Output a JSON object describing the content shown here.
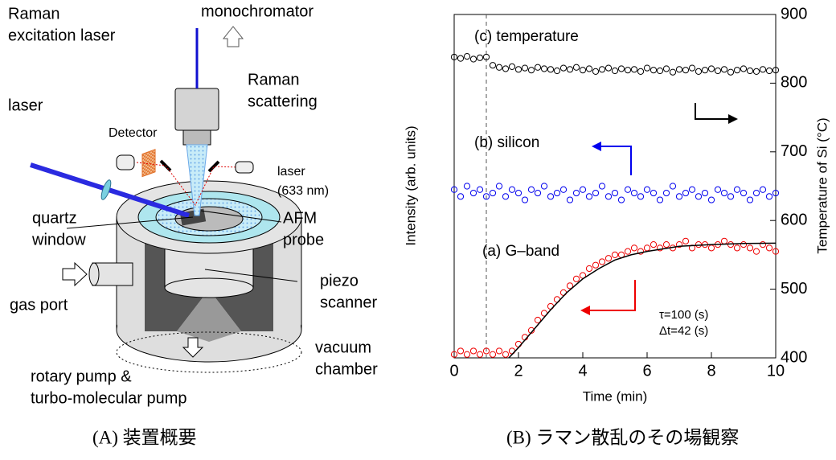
{
  "diagram": {
    "labels": {
      "raman_laser": [
        "Raman",
        "excitation laser"
      ],
      "monochromator": "monochromator",
      "raman_scattering": [
        "Raman",
        "scattering"
      ],
      "laser": "laser",
      "detector": "Detector",
      "probe_laser": [
        "laser",
        "(633 nm)"
      ],
      "quartz_window": [
        "quartz",
        "window"
      ],
      "afm_probe": [
        "AFM",
        "probe"
      ],
      "gas_port": "gas port",
      "piezo_scanner": [
        "piezo",
        "scanner"
      ],
      "vacuum_chamber": [
        "vacuum",
        "chamber"
      ],
      "pumps": [
        "rotary pump &",
        "turbo-molecular pump"
      ]
    },
    "caption": "(A) 装置概要"
  },
  "chart_data": {
    "type": "scatter",
    "caption": "(B) ラマン散乱のその場観察",
    "x_label": "Time (min)",
    "y_label": "Intensity (arb. units)",
    "y2_label": "Temperature of Si (°C)",
    "xlim": [
      0,
      10
    ],
    "xticks": [
      0,
      2,
      4,
      6,
      8,
      10
    ],
    "ylim": [
      0,
      100
    ],
    "y2lim": [
      400,
      900
    ],
    "y2ticks": [
      400,
      500,
      600,
      700,
      800,
      900
    ],
    "vline": 1,
    "annotations": [
      "τ=100 (s)",
      "Δt=42 (s)"
    ],
    "x": [
      0,
      0.2,
      0.4,
      0.6,
      0.8,
      1,
      1.2,
      1.4,
      1.6,
      1.8,
      2,
      2.2,
      2.4,
      2.6,
      2.8,
      3,
      3.2,
      3.4,
      3.6,
      3.8,
      4,
      4.2,
      4.4,
      4.6,
      4.8,
      5,
      5.2,
      5.4,
      5.6,
      5.8,
      6,
      6.2,
      6.4,
      6.6,
      6.8,
      7,
      7.2,
      7.4,
      7.6,
      7.8,
      8,
      8.2,
      8.4,
      8.6,
      8.8,
      9,
      9.2,
      9.4,
      9.6,
      9.8,
      10
    ],
    "series": [
      {
        "name": "(c) temperature",
        "color": "#000000",
        "axis": "y2",
        "values": [
          838,
          836,
          839,
          835,
          837,
          838,
          826,
          823,
          821,
          824,
          820,
          822,
          819,
          823,
          821,
          820,
          818,
          822,
          820,
          823,
          819,
          821,
          817,
          820,
          822,
          818,
          821,
          819,
          820,
          817,
          822,
          819,
          818,
          821,
          816,
          820,
          819,
          822,
          817,
          819,
          821,
          818,
          820,
          816,
          819,
          821,
          818,
          817,
          820,
          818,
          819
        ]
      },
      {
        "name": "(b) silicon",
        "color": "#0000ee",
        "values": [
          49,
          47,
          50,
          48,
          49,
          47,
          48,
          50,
          47,
          49,
          48,
          46,
          49,
          48,
          50,
          47,
          48,
          49,
          46,
          48,
          49,
          47,
          48,
          50,
          47,
          48,
          46,
          49,
          48,
          47,
          49,
          48,
          46,
          48,
          50,
          47,
          48,
          49,
          47,
          48,
          46,
          49,
          48,
          47,
          49,
          48,
          46,
          48,
          49,
          47,
          48
        ]
      },
      {
        "name": "(a) G–band",
        "color": "#ee0000",
        "values": [
          1,
          2,
          1,
          2,
          1,
          2,
          1,
          2,
          1,
          2,
          4,
          6,
          8,
          11,
          13,
          15,
          17,
          19,
          21,
          23,
          24,
          26,
          27,
          28,
          29,
          30,
          30,
          31,
          32,
          31,
          32,
          33,
          32,
          33,
          32,
          33,
          34,
          32,
          33,
          33,
          32,
          33,
          34,
          33,
          32,
          33,
          32,
          31,
          33,
          32,
          31
        ]
      }
    ],
    "fit": {
      "color": "#000000",
      "x": [
        1.7,
        2,
        2.5,
        3,
        3.5,
        4,
        4.5,
        5,
        5.5,
        6,
        7,
        8,
        9,
        10
      ],
      "values": [
        0,
        3,
        8.5,
        14,
        19,
        23,
        26,
        28.5,
        30,
        31,
        32.5,
        33,
        33.3,
        33.4
      ]
    }
  }
}
